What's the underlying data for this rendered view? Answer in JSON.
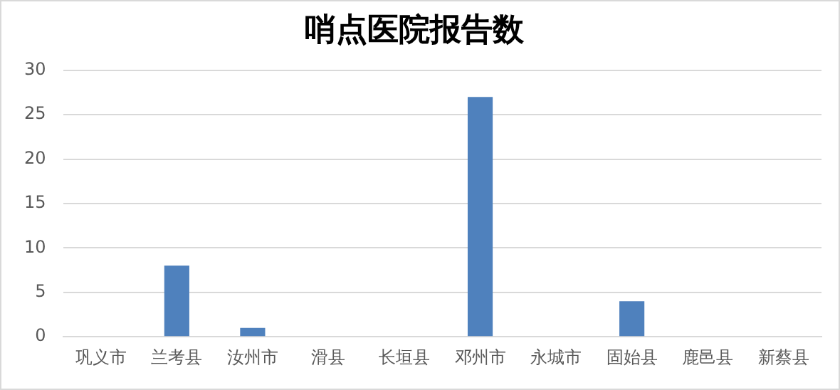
{
  "chart_data": {
    "type": "bar",
    "title": "哨点医院报告数",
    "categories": [
      "巩义市",
      "兰考县",
      "汝州市",
      "滑县",
      "长垣县",
      "邓州市",
      "永城市",
      "固始县",
      "鹿邑县",
      "新蔡县"
    ],
    "values": [
      0,
      8,
      1,
      0,
      0,
      27,
      0,
      4,
      0,
      0
    ],
    "color": "#4f81bd",
    "ylim": [
      0,
      30
    ],
    "yticks": [
      0,
      5,
      10,
      15,
      20,
      25,
      30
    ],
    "grid": "y",
    "legend": false
  }
}
